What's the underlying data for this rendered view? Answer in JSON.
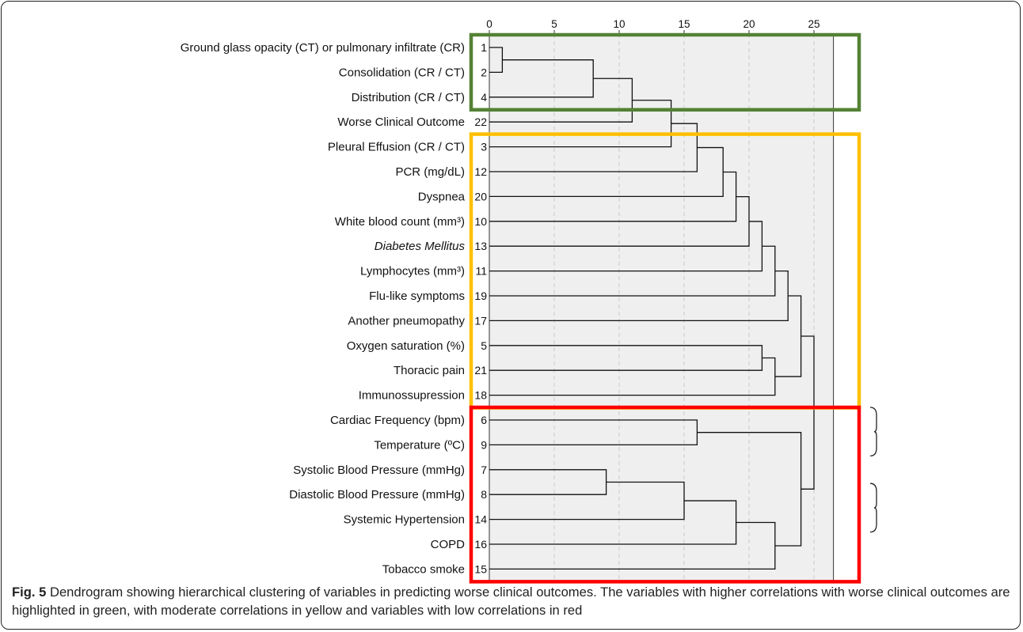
{
  "caption": {
    "label": "Fig. 5",
    "text": " Dendrogram showing hierarchical clustering of variables in predicting worse clinical outcomes. The variables with higher correlations with worse clinical outcomes are highlighted in green, with moderate correlations in yellow and variables with low correlations in red"
  },
  "chart_data": {
    "type": "dendrogram",
    "x_ticks": [
      "0",
      "5",
      "10",
      "15",
      "20",
      "25"
    ],
    "xlim": [
      0,
      26.5
    ],
    "grid": "vertical dashed",
    "leaves": [
      {
        "label": "Ground glass opacity (CT) or pulmonary infiltrate (CR)",
        "id": "1",
        "italic": false
      },
      {
        "label": "Consolidation (CR / CT)",
        "id": "2",
        "italic": false
      },
      {
        "label": "Distribution (CR / CT)",
        "id": "4",
        "italic": false
      },
      {
        "label": "Worse Clinical Outcome",
        "id": "22",
        "italic": false
      },
      {
        "label": "Pleural Effusion (CR / CT)",
        "id": "3",
        "italic": false
      },
      {
        "label": "PCR (mg/dL)",
        "id": "12",
        "italic": false
      },
      {
        "label": "Dyspnea",
        "id": "20",
        "italic": false
      },
      {
        "label": "White blood count (mm³)",
        "id": "10",
        "italic": false
      },
      {
        "label": "Diabetes Mellitus",
        "id": "13",
        "italic": true
      },
      {
        "label": "Lymphocytes (mm³)",
        "id": "11",
        "italic": false
      },
      {
        "label": "Flu-like symptoms",
        "id": "19",
        "italic": false
      },
      {
        "label": "Another pneumopathy",
        "id": "17",
        "italic": false
      },
      {
        "label": "Oxygen saturation (%)",
        "id": "5",
        "italic": false
      },
      {
        "label": "Thoracic pain",
        "id": "21",
        "italic": false
      },
      {
        "label": "Immunossupression",
        "id": "18",
        "italic": false
      },
      {
        "label": "Cardiac Frequency (bpm)",
        "id": "6",
        "italic": false
      },
      {
        "label": "Temperature (ºC)",
        "id": "9",
        "italic": false
      },
      {
        "label": "Systolic Blood Pressure (mmHg)",
        "id": "7",
        "italic": false
      },
      {
        "label": "Diastolic Blood Pressure (mmHg)",
        "id": "8",
        "italic": false
      },
      {
        "label": "Systemic Hypertension",
        "id": "14",
        "italic": false
      },
      {
        "label": "COPD",
        "id": "16",
        "italic": false
      },
      {
        "label": "Tobacco smoke",
        "id": "15",
        "italic": false
      }
    ],
    "merges": [
      {
        "a": 0,
        "b": 1,
        "h": 1
      },
      {
        "a": 22,
        "b": 2,
        "h": 8
      },
      {
        "a": 23,
        "b": 3,
        "h": 11
      },
      {
        "a": 24,
        "b": 4,
        "h": 14
      },
      {
        "a": 25,
        "b": 5,
        "h": 16
      },
      {
        "a": 26,
        "b": 6,
        "h": 18
      },
      {
        "a": 27,
        "b": 7,
        "h": 19
      },
      {
        "a": 28,
        "b": 8,
        "h": 20
      },
      {
        "a": 29,
        "b": 9,
        "h": 21
      },
      {
        "a": 30,
        "b": 10,
        "h": 22
      },
      {
        "a": 31,
        "b": 11,
        "h": 23
      },
      {
        "a": 12,
        "b": 13,
        "h": 21
      },
      {
        "a": 33,
        "b": 14,
        "h": 22
      },
      {
        "a": 32,
        "b": 34,
        "h": 24
      },
      {
        "a": 15,
        "b": 16,
        "h": 16
      },
      {
        "a": 17,
        "b": 18,
        "h": 9
      },
      {
        "a": 37,
        "b": 19,
        "h": 15
      },
      {
        "a": 38,
        "b": 20,
        "h": 19
      },
      {
        "a": 39,
        "b": 21,
        "h": 22
      },
      {
        "a": 36,
        "b": 40,
        "h": 24
      },
      {
        "a": 35,
        "b": 41,
        "h": 25
      }
    ],
    "highlight_groups": [
      {
        "color": "#548235",
        "first": 0,
        "last": 2
      },
      {
        "color": "#ffc000",
        "first": 4,
        "last": 14
      },
      {
        "color": "#ff0000",
        "first": 15,
        "last": 21
      }
    ]
  }
}
